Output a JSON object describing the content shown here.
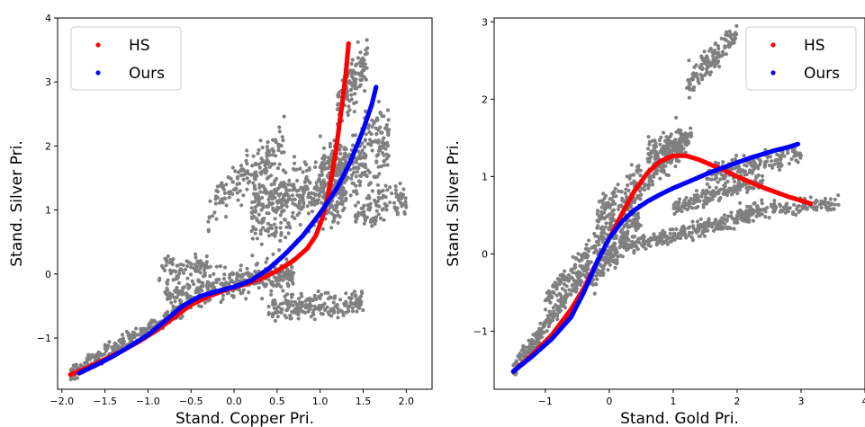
{
  "chart_data": [
    {
      "type": "scatter",
      "xlabel": "Stand. Copper Pri.",
      "ylabel": "Stand. Silver Pri.",
      "xlim": [
        -2.05,
        2.3
      ],
      "ylim": [
        -1.8,
        4.0
      ],
      "xticks": [
        -2.0,
        -1.5,
        -1.0,
        -0.5,
        0.0,
        0.5,
        1.0,
        1.5,
        2.0
      ],
      "xtick_labels": [
        "−2.0",
        "−1.5",
        "−1.0",
        "−0.5",
        "0.0",
        "0.5",
        "1.0",
        "1.5",
        "2.0"
      ],
      "yticks": [
        -1,
        0,
        1,
        2,
        3,
        4
      ],
      "ytick_labels": [
        "−1",
        "0",
        "1",
        "2",
        "3",
        "4"
      ],
      "legend_position": "top-left",
      "grid": false,
      "data_color": "#808080",
      "series": [
        {
          "name": "HS",
          "color": "#ff0000",
          "x": [
            -1.9,
            -1.7,
            -1.5,
            -1.3,
            -1.1,
            -0.9,
            -0.7,
            -0.5,
            -0.3,
            -0.1,
            0.1,
            0.3,
            0.5,
            0.7,
            0.85,
            0.95,
            1.02,
            1.08,
            1.13,
            1.18,
            1.22,
            1.26,
            1.3,
            1.33
          ],
          "y": [
            -1.57,
            -1.46,
            -1.33,
            -1.2,
            -1.05,
            -0.88,
            -0.68,
            -0.48,
            -0.35,
            -0.25,
            -0.17,
            -0.08,
            0.05,
            0.22,
            0.4,
            0.6,
            0.85,
            1.15,
            1.5,
            1.9,
            2.3,
            2.7,
            3.15,
            3.6
          ]
        },
        {
          "name": "Ours",
          "color": "#0000ff",
          "x": [
            -1.8,
            -1.6,
            -1.4,
            -1.2,
            -1.0,
            -0.8,
            -0.6,
            -0.4,
            -0.2,
            0.0,
            0.2,
            0.4,
            0.6,
            0.8,
            1.0,
            1.2,
            1.35,
            1.5,
            1.6,
            1.65
          ],
          "y": [
            -1.55,
            -1.42,
            -1.28,
            -1.12,
            -0.95,
            -0.73,
            -0.5,
            -0.35,
            -0.27,
            -0.2,
            -0.1,
            0.08,
            0.32,
            0.6,
            0.95,
            1.35,
            1.75,
            2.25,
            2.65,
            2.92
          ]
        }
      ]
    },
    {
      "type": "scatter",
      "xlabel": "Stand. Gold Pri.",
      "ylabel": "Stand. Silver Pri.",
      "xlim": [
        -1.8,
        4.0
      ],
      "ylim": [
        -1.75,
        3.05
      ],
      "xticks": [
        -1,
        0,
        1,
        2,
        3,
        4
      ],
      "xtick_labels": [
        "−1",
        "0",
        "1",
        "2",
        "3",
        "4"
      ],
      "yticks": [
        -1,
        0,
        1,
        2,
        3
      ],
      "ytick_labels": [
        "−1",
        "0",
        "1",
        "2",
        "3"
      ],
      "legend_position": "top-right",
      "grid": false,
      "data_color": "#808080",
      "series": [
        {
          "name": "HS",
          "color": "#ff0000",
          "x": [
            -1.5,
            -1.2,
            -0.9,
            -0.6,
            -0.4,
            -0.2,
            0.0,
            0.2,
            0.4,
            0.6,
            0.8,
            1.0,
            1.2,
            1.4,
            1.6,
            1.8,
            2.0,
            2.2,
            2.4,
            2.6,
            2.8,
            3.0,
            3.15
          ],
          "y": [
            -1.52,
            -1.3,
            -1.05,
            -0.72,
            -0.45,
            -0.12,
            0.2,
            0.52,
            0.82,
            1.05,
            1.2,
            1.27,
            1.27,
            1.22,
            1.15,
            1.08,
            1.0,
            0.93,
            0.86,
            0.8,
            0.74,
            0.69,
            0.65
          ]
        },
        {
          "name": "Ours",
          "color": "#0000ff",
          "x": [
            -1.5,
            -1.2,
            -0.9,
            -0.6,
            -0.4,
            -0.2,
            0.0,
            0.2,
            0.4,
            0.6,
            0.8,
            1.0,
            1.2,
            1.4,
            1.6,
            1.8,
            2.0,
            2.2,
            2.4,
            2.6,
            2.8,
            2.95
          ],
          "y": [
            -1.52,
            -1.32,
            -1.1,
            -0.82,
            -0.5,
            -0.12,
            0.2,
            0.42,
            0.57,
            0.68,
            0.77,
            0.85,
            0.92,
            0.99,
            1.06,
            1.12,
            1.18,
            1.24,
            1.29,
            1.34,
            1.38,
            1.42
          ]
        }
      ]
    }
  ]
}
